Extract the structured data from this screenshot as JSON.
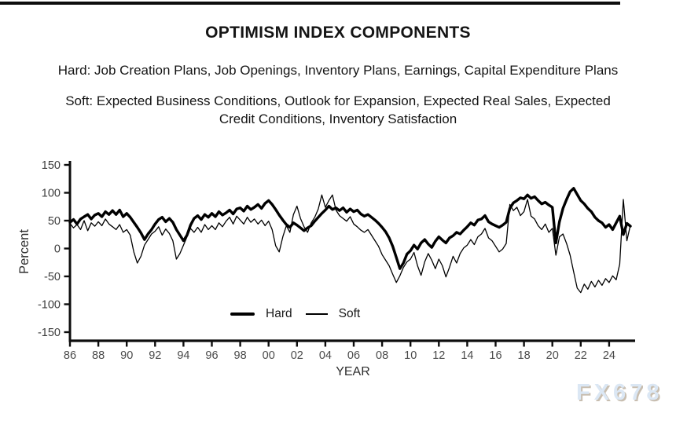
{
  "header": {
    "subtitle_hard": "Hard: Job Creation Plans, Job Openings, Inventory Plans, Earnings, Capital Expenditure Plans",
    "subtitle_soft_line1": "Soft: Expected Business Conditions, Outlook for Expansion, Expected Real Sales, Expected",
    "subtitle_soft_line2": "Credit Conditions, Inventory Satisfaction"
  },
  "watermark": "FX678",
  "chart_data": {
    "type": "line",
    "title": "OPTIMISM INDEX COMPONENTS",
    "xlabel": "YEAR",
    "ylabel": "Percent",
    "ylim": [
      -150,
      150
    ],
    "grid": "off",
    "y_ticks": [
      150,
      100,
      50,
      0,
      -50,
      -100,
      -150
    ],
    "x_ticks": [
      "86",
      "88",
      "90",
      "92",
      "94",
      "96",
      "98",
      "00",
      "02",
      "04",
      "06",
      "08",
      "10",
      "12",
      "14",
      "16",
      "18",
      "20",
      "22",
      "24"
    ],
    "x_tick_years": [
      1986,
      1988,
      1990,
      1992,
      1994,
      1996,
      1998,
      2000,
      2002,
      2004,
      2006,
      2008,
      2010,
      2012,
      2014,
      2016,
      2018,
      2020,
      2022,
      2024
    ],
    "legend": {
      "position": "bottom-center",
      "entries": [
        {
          "label": "Hard",
          "style": "thick"
        },
        {
          "label": "Soft",
          "style": "thin"
        }
      ]
    },
    "x_start": 1986,
    "x_step": 0.25,
    "series": [
      {
        "name": "Hard",
        "style": "thick",
        "values": [
          47,
          52,
          44,
          53,
          57,
          61,
          53,
          60,
          63,
          57,
          66,
          61,
          68,
          61,
          69,
          57,
          63,
          56,
          47,
          38,
          28,
          16,
          26,
          34,
          44,
          52,
          56,
          48,
          54,
          47,
          34,
          24,
          14,
          24,
          42,
          54,
          59,
          52,
          61,
          56,
          63,
          57,
          66,
          60,
          64,
          69,
          62,
          71,
          73,
          67,
          76,
          70,
          74,
          79,
          72,
          81,
          86,
          79,
          70,
          60,
          51,
          43,
          38,
          46,
          42,
          37,
          32,
          37,
          41,
          49,
          56,
          63,
          69,
          76,
          70,
          73,
          68,
          73,
          65,
          71,
          66,
          69,
          62,
          58,
          61,
          56,
          51,
          45,
          38,
          30,
          19,
          4,
          -16,
          -36,
          -26,
          -10,
          -4,
          6,
          -1,
          10,
          16,
          8,
          2,
          13,
          21,
          15,
          10,
          19,
          23,
          29,
          26,
          33,
          39,
          46,
          42,
          51,
          53,
          59,
          48,
          44,
          41,
          38,
          42,
          47,
          72,
          82,
          86,
          91,
          89,
          96,
          90,
          93,
          86,
          80,
          83,
          78,
          74,
          10,
          48,
          72,
          88,
          102,
          108,
          97,
          86,
          80,
          72,
          66,
          56,
          50,
          46,
          38,
          43,
          34,
          46,
          58,
          25,
          45,
          40
        ]
      },
      {
        "name": "Soft",
        "style": "thin",
        "values": [
          45,
          37,
          43,
          34,
          50,
          32,
          46,
          40,
          48,
          41,
          53,
          44,
          39,
          34,
          43,
          29,
          34,
          24,
          -6,
          -26,
          -14,
          6,
          16,
          26,
          31,
          39,
          24,
          35,
          27,
          14,
          -19,
          -9,
          6,
          21,
          36,
          29,
          38,
          29,
          43,
          34,
          41,
          34,
          46,
          39,
          49,
          56,
          44,
          58,
          51,
          44,
          56,
          47,
          53,
          44,
          51,
          41,
          49,
          34,
          5,
          -6,
          21,
          41,
          29,
          61,
          76,
          54,
          39,
          29,
          46,
          56,
          71,
          96,
          74,
          86,
          96,
          69,
          59,
          54,
          49,
          57,
          44,
          39,
          33,
          29,
          34,
          24,
          14,
          4,
          -11,
          -21,
          -31,
          -46,
          -61,
          -49,
          -34,
          -24,
          -19,
          -7,
          -31,
          -48,
          -24,
          -9,
          -21,
          -36,
          -19,
          -31,
          -51,
          -34,
          -14,
          -26,
          -9,
          1,
          6,
          16,
          7,
          21,
          26,
          36,
          19,
          14,
          4,
          -6,
          -1,
          9,
          79,
          68,
          74,
          59,
          66,
          88,
          58,
          53,
          41,
          34,
          44,
          29,
          36,
          -12,
          21,
          26,
          9,
          -12,
          -42,
          -71,
          -79,
          -64,
          -73,
          -59,
          -69,
          -57,
          -66,
          -54,
          -61,
          -49,
          -56,
          -28,
          88,
          14,
          42
        ]
      }
    ]
  }
}
